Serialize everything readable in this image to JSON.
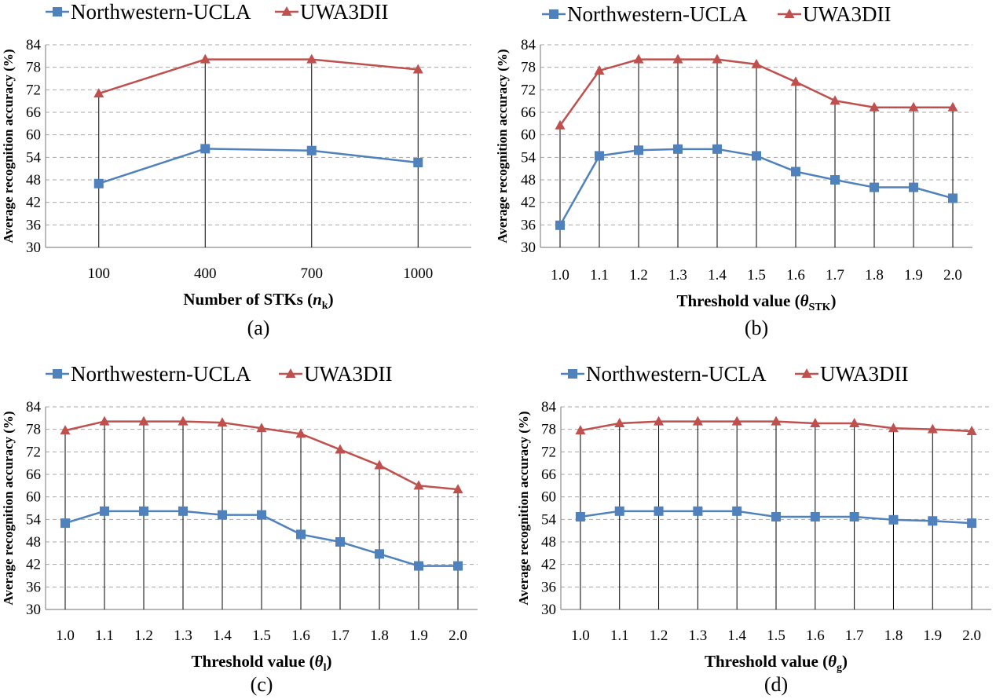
{
  "colors": {
    "series0": "#4f81bd",
    "series1": "#c0504d"
  },
  "legend": [
    "Northwestern-UCLA",
    "UWA3DII"
  ],
  "chart_data": [
    {
      "id": "a",
      "type": "line",
      "caption": "(a)",
      "xlabel": "Number of STKs (",
      "xsym": "n",
      "xsub": "k",
      "xtail": ")",
      "ylabel": "Average recognition accuracy (%)",
      "ylim": [
        30,
        84
      ],
      "yticks": [
        30,
        36,
        42,
        48,
        54,
        60,
        66,
        72,
        78,
        84
      ],
      "categories": [
        "100",
        "400",
        "700",
        "1000"
      ],
      "series": [
        {
          "name": "Northwestern-UCLA",
          "marker": "square",
          "values": [
            47.0,
            56.3,
            55.8,
            52.6
          ]
        },
        {
          "name": "UWA3DII",
          "marker": "triangle",
          "values": [
            71.0,
            80.1,
            80.1,
            77.4
          ]
        }
      ]
    },
    {
      "id": "b",
      "type": "line",
      "caption": "(b)",
      "xlabel": "Threshold value (",
      "xsym": "θ",
      "xsub": "STK",
      "xtail": ")",
      "ylabel": "Average recognition accuracy (%)",
      "ylim": [
        30,
        84
      ],
      "yticks": [
        30,
        36,
        42,
        48,
        54,
        60,
        66,
        72,
        78,
        84
      ],
      "categories": [
        "1.0",
        "1.1",
        "1.2",
        "1.3",
        "1.4",
        "1.5",
        "1.6",
        "1.7",
        "1.8",
        "1.9",
        "2.0"
      ],
      "series": [
        {
          "name": "Northwestern-UCLA",
          "marker": "square",
          "values": [
            35.9,
            54.4,
            55.9,
            56.2,
            56.2,
            54.4,
            50.2,
            48.0,
            46.0,
            46.0,
            43.1
          ]
        },
        {
          "name": "UWA3DII",
          "marker": "triangle",
          "values": [
            62.5,
            77.1,
            80.1,
            80.1,
            80.1,
            78.8,
            74.1,
            69.1,
            67.3,
            67.3,
            67.3
          ]
        }
      ]
    },
    {
      "id": "c",
      "type": "line",
      "caption": "(c)",
      "xlabel": "Threshold value (",
      "xsym": "θ",
      "xsub": "l",
      "xtail": ")",
      "ylabel": "Average recognition accuracy (%)",
      "ylim": [
        30,
        84
      ],
      "yticks": [
        30,
        36,
        42,
        48,
        54,
        60,
        66,
        72,
        78,
        84
      ],
      "categories": [
        "1.0",
        "1.1",
        "1.2",
        "1.3",
        "1.4",
        "1.5",
        "1.6",
        "1.7",
        "1.8",
        "1.9",
        "2.0"
      ],
      "series": [
        {
          "name": "Northwestern-UCLA",
          "marker": "square",
          "values": [
            53.0,
            56.2,
            56.2,
            56.2,
            55.2,
            55.2,
            50.0,
            48.0,
            44.8,
            41.6,
            41.6
          ]
        },
        {
          "name": "UWA3DII",
          "marker": "triangle",
          "values": [
            77.7,
            80.1,
            80.1,
            80.1,
            79.8,
            78.3,
            76.8,
            72.6,
            68.4,
            63.0,
            62.0
          ]
        }
      ]
    },
    {
      "id": "d",
      "type": "line",
      "caption": "(d)",
      "xlabel": "Threshold value (",
      "xsym": "θ",
      "xsub": "g",
      "xtail": ")",
      "ylabel": "Average recognition accuracy (%)",
      "ylim": [
        30,
        84
      ],
      "yticks": [
        30,
        36,
        42,
        48,
        54,
        60,
        66,
        72,
        78,
        84
      ],
      "categories": [
        "1.0",
        "1.1",
        "1.2",
        "1.3",
        "1.4",
        "1.5",
        "1.6",
        "1.7",
        "1.8",
        "1.9",
        "2.0"
      ],
      "series": [
        {
          "name": "Northwestern-UCLA",
          "marker": "square",
          "values": [
            54.7,
            56.2,
            56.2,
            56.2,
            56.2,
            54.7,
            54.7,
            54.7,
            53.9,
            53.6,
            53.0
          ]
        },
        {
          "name": "UWA3DII",
          "marker": "triangle",
          "values": [
            77.7,
            79.6,
            80.1,
            80.1,
            80.1,
            80.1,
            79.6,
            79.6,
            78.3,
            78.0,
            77.5
          ]
        }
      ]
    }
  ]
}
